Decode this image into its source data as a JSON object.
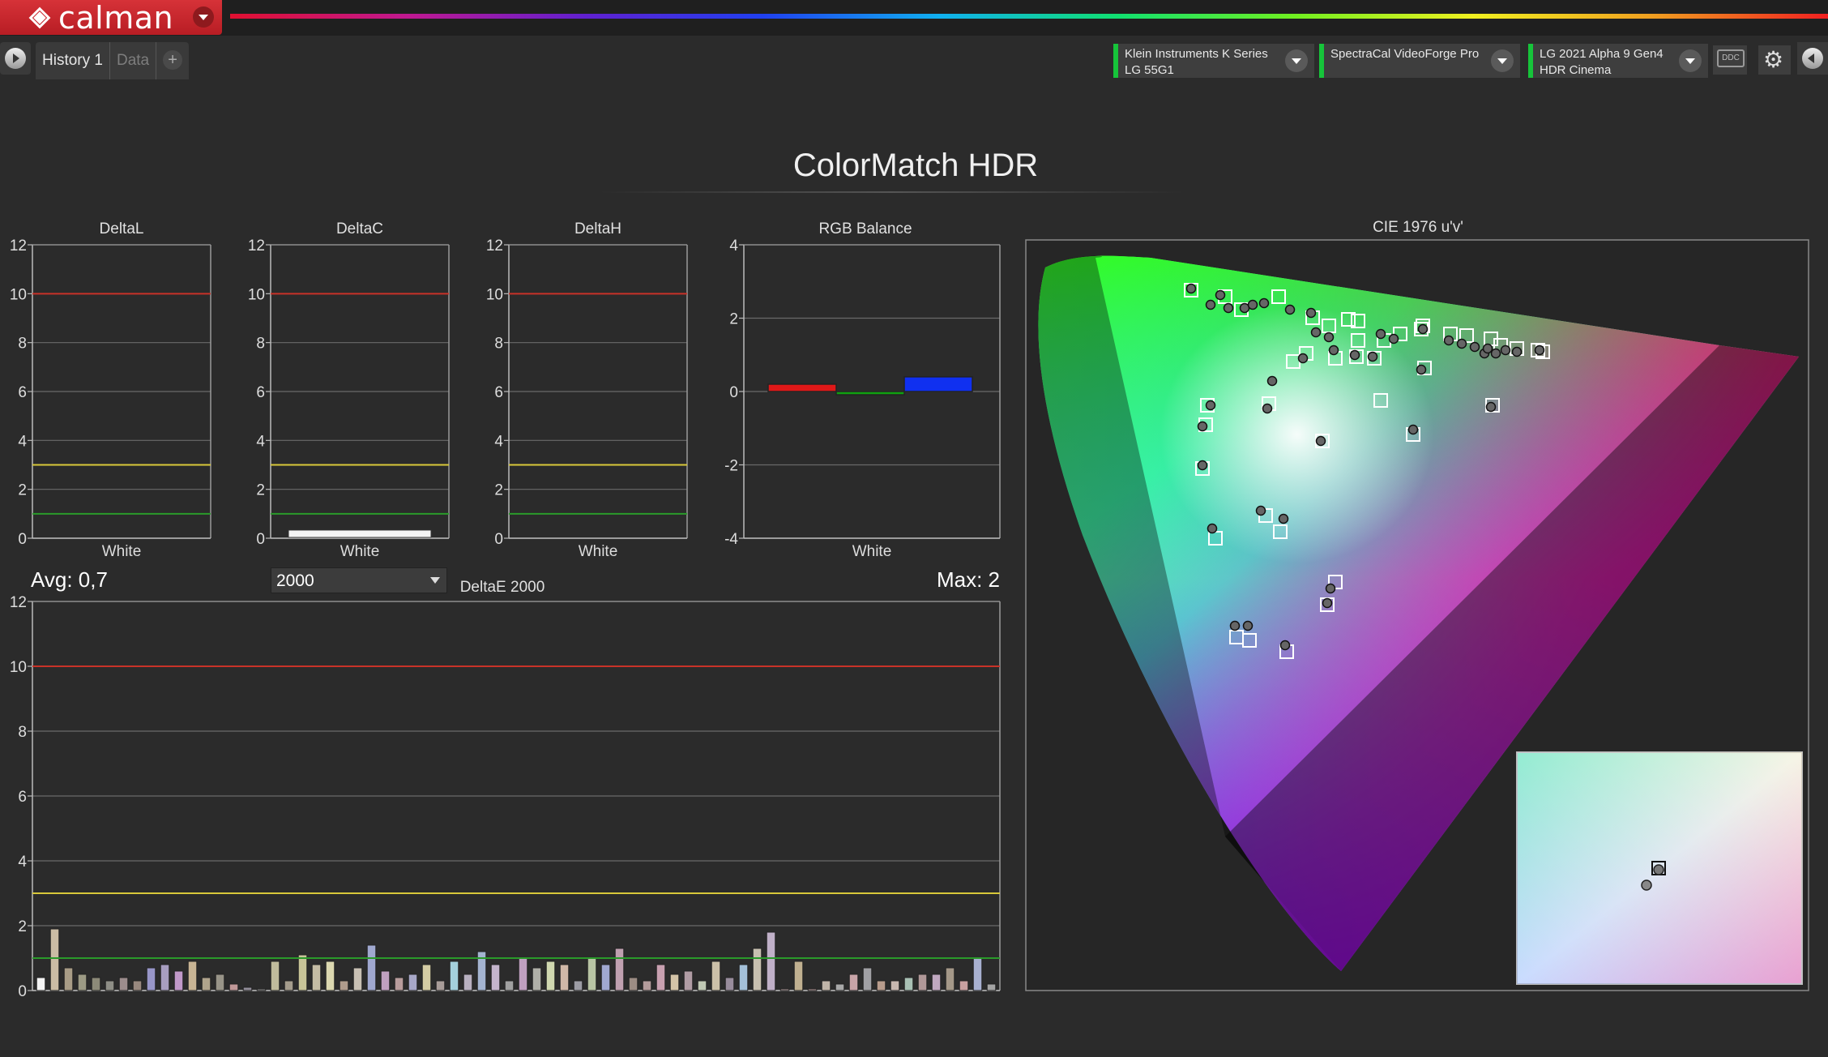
{
  "app": {
    "logo_text": "calman"
  },
  "tabs": [
    {
      "label": "History 1",
      "active": true
    },
    {
      "label": "Data",
      "active": false
    }
  ],
  "devices": [
    {
      "line1": "Klein Instruments K Series",
      "line2": "LG 55G1"
    },
    {
      "line1": "SpectraCal VideoForge Pro",
      "line2": ""
    },
    {
      "line1": "LG 2021 Alpha 9 Gen4",
      "line2": "HDR Cinema"
    }
  ],
  "ddc_label": "DDC",
  "page_title": "ColorMatch HDR",
  "colors": {
    "red_line": "#c83228",
    "yellow_line": "#d8c83a",
    "green_line": "#2a9a2a",
    "brand": "#d0282e",
    "status_green": "#16c43a"
  },
  "delta_charts": [
    {
      "title": "DeltaL",
      "category": "White",
      "value": 0.0,
      "yticks": [
        "0",
        "2",
        "4",
        "6",
        "8",
        "10",
        "12"
      ]
    },
    {
      "title": "DeltaC",
      "category": "White",
      "value": 0.3,
      "yticks": [
        "0",
        "2",
        "4",
        "6",
        "8",
        "10",
        "12"
      ]
    },
    {
      "title": "DeltaH",
      "category": "White",
      "value": 0.0,
      "yticks": [
        "0",
        "2",
        "4",
        "6",
        "8",
        "10",
        "12"
      ]
    }
  ],
  "chart_data": [
    {
      "type": "bar",
      "title": "DeltaL",
      "categories": [
        "White"
      ],
      "values": [
        0.0
      ],
      "ylim": [
        0,
        12
      ],
      "thresholds": [
        10,
        3,
        1
      ]
    },
    {
      "type": "bar",
      "title": "DeltaC",
      "categories": [
        "White"
      ],
      "values": [
        0.3
      ],
      "ylim": [
        0,
        12
      ],
      "thresholds": [
        10,
        3,
        1
      ]
    },
    {
      "type": "bar",
      "title": "DeltaH",
      "categories": [
        "White"
      ],
      "values": [
        0.0
      ],
      "ylim": [
        0,
        12
      ],
      "thresholds": [
        10,
        3,
        1
      ]
    },
    {
      "type": "bar",
      "title": "RGB Balance",
      "categories": [
        "White"
      ],
      "series": [
        {
          "name": "R",
          "values": [
            0.2
          ]
        },
        {
          "name": "G",
          "values": [
            -0.05
          ]
        },
        {
          "name": "B",
          "values": [
            0.4
          ]
        }
      ],
      "ylim": [
        -4,
        4
      ],
      "yticks": [
        "-4",
        "-2",
        "0",
        "2",
        "4"
      ]
    },
    {
      "type": "bar",
      "title": "DeltaE 2000",
      "ylim": [
        0,
        12
      ],
      "yticks": [
        "0",
        "2",
        "4",
        "6",
        "8",
        "10",
        "12"
      ],
      "thresholds": [
        10,
        3,
        1
      ],
      "values": [
        0.4,
        1.9,
        0.7,
        0.5,
        0.4,
        0.3,
        0.4,
        0.3,
        0.7,
        0.8,
        0.6,
        0.9,
        0.4,
        0.5,
        0.2,
        0.1,
        0.05,
        0.9,
        0.3,
        1.1,
        0.8,
        0.9,
        0.3,
        0.7,
        1.4,
        0.6,
        0.4,
        0.5,
        0.8,
        0.3,
        0.9,
        0.5,
        1.2,
        0.8,
        0.3,
        1.0,
        0.7,
        0.9,
        0.8,
        0.3,
        1.0,
        0.8,
        1.3,
        0.4,
        0.3,
        0.8,
        0.5,
        0.6,
        0.3,
        0.9,
        0.4,
        0.8,
        1.3,
        1.8,
        0.05,
        0.9,
        0.05,
        0.3,
        0.2,
        0.5,
        0.7,
        0.3,
        0.3,
        0.4,
        0.5,
        0.5,
        0.7,
        0.3,
        1.0,
        0.2
      ],
      "bar_colors": [
        "#f4f4f4",
        "#cbbca4",
        "#a89c86",
        "#9c9a84",
        "#8c8a78",
        "#8e8e86",
        "#9c8c8c",
        "#98887e",
        "#9896c8",
        "#a89ec0",
        "#c098c8",
        "#c8b494",
        "#b0a48c",
        "#989488",
        "#c09898",
        "#908c98",
        "#8c8c8c",
        "#c0bc9c",
        "#a49c8c",
        "#c8c498",
        "#c4bca4",
        "#dcd8b0",
        "#b09c8c",
        "#c8c0b4",
        "#a0a8d0",
        "#c0a0c0",
        "#b89c9c",
        "#a8a8c8",
        "#d4cca4",
        "#a89c98",
        "#a4d0dc",
        "#b8b0c0",
        "#a4b4d0",
        "#c4b4cc",
        "#a0a0a0",
        "#c0a0c0",
        "#b0b0a8",
        "#d0d8b0",
        "#d0b8a8",
        "#9c9ca4",
        "#b8c4a4",
        "#a0a8d0",
        "#c0a0b0",
        "#9c8c84",
        "#b49c9c",
        "#c8a0b0",
        "#d4c4a8",
        "#b09ca4",
        "#c0c8b4",
        "#ccc0a8",
        "#988c9c",
        "#a4c0d8",
        "#c8c0b0",
        "#c0b0c8",
        "#b09c9c",
        "#c0b090",
        "#b89c9c",
        "#c0b4a8",
        "#a8a8a8",
        "#c8a4a8",
        "#a0a0a4",
        "#b89c8c",
        "#c8b8b0",
        "#a8c0b4",
        "#b09898",
        "#c0a8c0",
        "#a49888",
        "#c8a0a0",
        "#a8b0d0",
        "#a4a4a4"
      ]
    },
    {
      "type": "scatter",
      "title": "CIE 1976 u'v'"
    }
  ],
  "rgb_chart": {
    "title": "RGB Balance",
    "category": "White",
    "yticks": [
      "-4",
      "-2",
      "0",
      "2",
      "4"
    ]
  },
  "de_chart": {
    "title": "DeltaE 2000",
    "avg_label": "Avg: 0,7",
    "max_label": "Max: 2",
    "formula_select": "2000",
    "yticks": [
      "0",
      "2",
      "4",
      "6",
      "8",
      "10",
      "12"
    ]
  },
  "cie_chart": {
    "title": "CIE 1976 u'v'"
  }
}
